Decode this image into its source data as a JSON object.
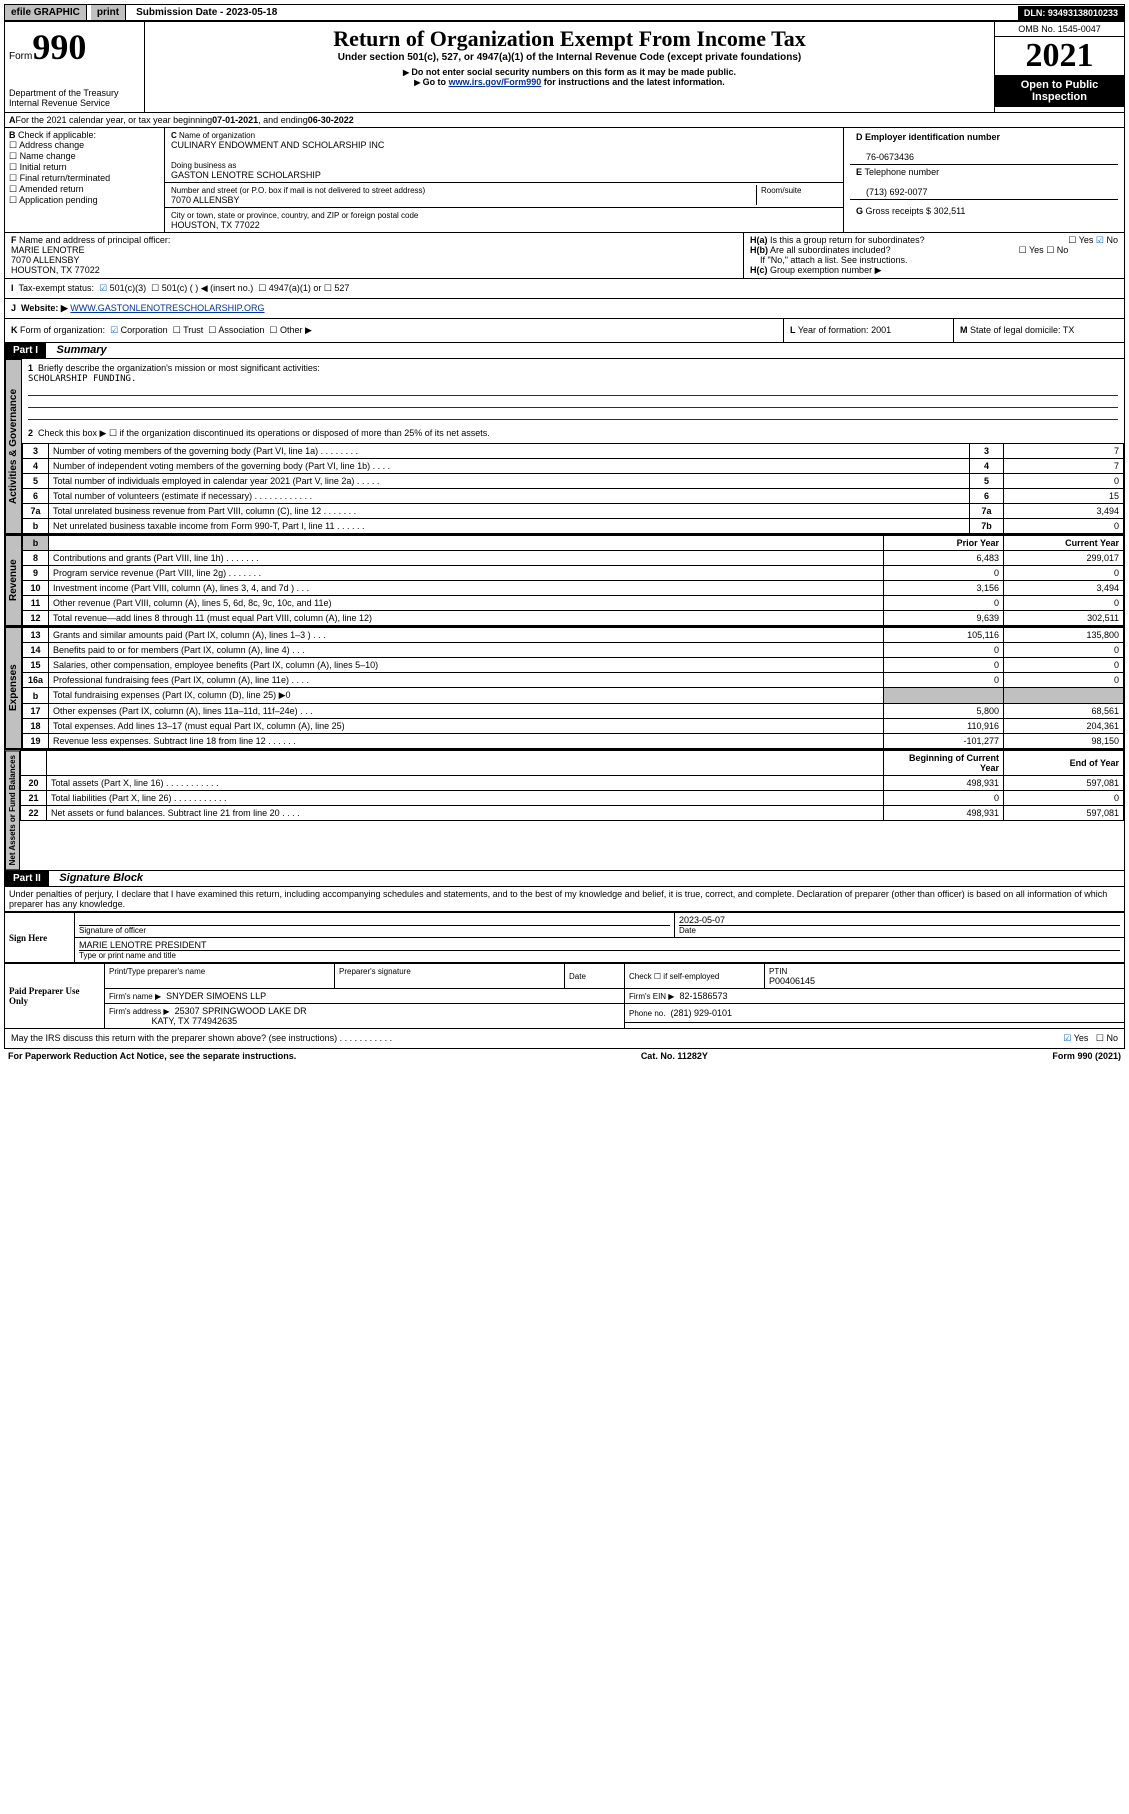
{
  "topbar": {
    "efile": "efile GRAPHIC",
    "print": "print",
    "subdate_label": "Submission Date - ",
    "subdate": "2023-05-18",
    "dln": "DLN: 93493138010233"
  },
  "header": {
    "form_label": "Form",
    "form_number": "990",
    "title": "Return of Organization Exempt From Income Tax",
    "subtitle": "Under section 501(c), 527, or 4947(a)(1) of the Internal Revenue Code (except private foundations)",
    "note1": "Do not enter social security numbers on this form as it may be made public.",
    "note2_pre": "Go to ",
    "note2_link": "www.irs.gov/Form990",
    "note2_post": " for instructions and the latest information.",
    "dept": "Department of the Treasury\nInternal Revenue Service",
    "omb": "OMB No. 1545-0047",
    "year": "2021",
    "open": "Open to Public Inspection"
  },
  "A": {
    "text_pre": "For the 2021 calendar year, or tax year beginning ",
    "beg": "07-01-2021",
    "mid": " , and ending ",
    "end": "06-30-2022"
  },
  "B": {
    "label": "Check if applicable:",
    "items": [
      "Address change",
      "Name change",
      "Initial return",
      "Final return/terminated",
      "Amended return",
      "Application pending"
    ]
  },
  "C": {
    "name_label": "Name of organization",
    "name": "CULINARY ENDOWMENT AND SCHOLARSHIP INC",
    "dba_label": "Doing business as",
    "dba": "GASTON LENOTRE SCHOLARSHIP",
    "street_label": "Number and street (or P.O. box if mail is not delivered to street address)",
    "street": "7070 ALLENSBY",
    "room_label": "Room/suite",
    "city_label": "City or town, state or province, country, and ZIP or foreign postal code",
    "city": "HOUSTON, TX  77022"
  },
  "D": {
    "label": "Employer identification number",
    "value": "76-0673436"
  },
  "E": {
    "label": "Telephone number",
    "value": "(713) 692-0077"
  },
  "G": {
    "label": "Gross receipts $",
    "value": "302,511"
  },
  "F": {
    "label": "Name and address of principal officer:",
    "name": "MARIE LENOTRE",
    "street": "7070 ALLENSBY",
    "city": "HOUSTON, TX  77022"
  },
  "H": {
    "a": "Is this a group return for subordinates?",
    "a_yes": "Yes",
    "a_no": "No",
    "b": "Are all subordinates included?",
    "b_note": "If \"No,\" attach a list. See instructions.",
    "c": "Group exemption number ▶"
  },
  "I": {
    "label": "Tax-exempt status:",
    "opt1": "501(c)(3)",
    "opt2": "501(c) (  ) ◀ (insert no.)",
    "opt3": "4947(a)(1) or",
    "opt4": "527"
  },
  "J": {
    "label": "Website: ▶",
    "value": "WWW.GASTONLENOTRESCHOLARSHIP.ORG"
  },
  "K": {
    "label": "Form of organization:",
    "opts": [
      "Corporation",
      "Trust",
      "Association",
      "Other ▶"
    ]
  },
  "L": {
    "label": "Year of formation:",
    "value": "2001"
  },
  "M": {
    "label": "State of legal domicile:",
    "value": "TX"
  },
  "part1": {
    "header": "Part I",
    "title": "Summary",
    "line1_label": "Briefly describe the organization's mission or most significant activities:",
    "line1_value": "SCHOLARSHIP FUNDING.",
    "line2": "Check this box ▶ ☐  if the organization discontinued its operations or disposed of more than 25% of its net assets.",
    "governance_label": "Activities & Governance",
    "rev_label": "Revenue",
    "exp_label": "Expenses",
    "net_label": "Net Assets or Fund Balances",
    "rows_gov": [
      {
        "n": "3",
        "t": "Number of voting members of the governing body (Part VI, line 1a)  .  .  .  .  .  .  .  .",
        "box": "3",
        "v": "7"
      },
      {
        "n": "4",
        "t": "Number of independent voting members of the governing body (Part VI, line 1b)  .  .  .  .",
        "box": "4",
        "v": "7"
      },
      {
        "n": "5",
        "t": "Total number of individuals employed in calendar year 2021 (Part V, line 2a)  .  .  .  .  .",
        "box": "5",
        "v": "0"
      },
      {
        "n": "6",
        "t": "Total number of volunteers (estimate if necessary)  .  .  .  .  .  .  .  .  .  .  .  .",
        "box": "6",
        "v": "15"
      },
      {
        "n": "7a",
        "t": "Total unrelated business revenue from Part VIII, column (C), line 12  .  .  .  .  .  .  .",
        "box": "7a",
        "v": "3,494"
      },
      {
        "n": "b",
        "t": "Net unrelated business taxable income from Form 990-T, Part I, line 11  .  .  .  .  .  .",
        "box": "7b",
        "v": "0"
      }
    ],
    "col_prior": "Prior Year",
    "col_current": "Current Year",
    "rows_rev": [
      {
        "n": "8",
        "t": "Contributions and grants (Part VIII, line 1h)  .  .  .  .  .  .  .",
        "p": "6,483",
        "c": "299,017"
      },
      {
        "n": "9",
        "t": "Program service revenue (Part VIII, line 2g)  .  .  .  .  .  .  .",
        "p": "0",
        "c": "0"
      },
      {
        "n": "10",
        "t": "Investment income (Part VIII, column (A), lines 3, 4, and 7d )  .  .  .",
        "p": "3,156",
        "c": "3,494"
      },
      {
        "n": "11",
        "t": "Other revenue (Part VIII, column (A), lines 5, 6d, 8c, 9c, 10c, and 11e)",
        "p": "0",
        "c": "0"
      },
      {
        "n": "12",
        "t": "Total revenue—add lines 8 through 11 (must equal Part VIII, column (A), line 12)",
        "p": "9,639",
        "c": "302,511"
      }
    ],
    "rows_exp": [
      {
        "n": "13",
        "t": "Grants and similar amounts paid (Part IX, column (A), lines 1–3 )  .  .  .",
        "p": "105,116",
        "c": "135,800"
      },
      {
        "n": "14",
        "t": "Benefits paid to or for members (Part IX, column (A), line 4)  .  .  .",
        "p": "0",
        "c": "0"
      },
      {
        "n": "15",
        "t": "Salaries, other compensation, employee benefits (Part IX, column (A), lines 5–10)",
        "p": "0",
        "c": "0"
      },
      {
        "n": "16a",
        "t": "Professional fundraising fees (Part IX, column (A), line 11e)  .  .  .  .",
        "p": "0",
        "c": "0"
      },
      {
        "n": "b",
        "t": "Total fundraising expenses (Part IX, column (D), line 25) ▶0",
        "p": "",
        "c": "",
        "shaded": true
      },
      {
        "n": "17",
        "t": "Other expenses (Part IX, column (A), lines 11a–11d, 11f–24e)  .  .  .",
        "p": "5,800",
        "c": "68,561"
      },
      {
        "n": "18",
        "t": "Total expenses. Add lines 13–17 (must equal Part IX, column (A), line 25)",
        "p": "110,916",
        "c": "204,361"
      },
      {
        "n": "19",
        "t": "Revenue less expenses. Subtract line 18 from line 12  .  .  .  .  .  .",
        "p": "-101,277",
        "c": "98,150"
      }
    ],
    "col_begin": "Beginning of Current Year",
    "col_end": "End of Year",
    "rows_net": [
      {
        "n": "20",
        "t": "Total assets (Part X, line 16)  .  .  .  .  .  .  .  .  .  .  .",
        "p": "498,931",
        "c": "597,081"
      },
      {
        "n": "21",
        "t": "Total liabilities (Part X, line 26)  .  .  .  .  .  .  .  .  .  .  .",
        "p": "0",
        "c": "0"
      },
      {
        "n": "22",
        "t": "Net assets or fund balances. Subtract line 21 from line 20  .  .  .  .",
        "p": "498,931",
        "c": "597,081"
      }
    ]
  },
  "part2": {
    "header": "Part II",
    "title": "Signature Block",
    "penalty": "Under penalties of perjury, I declare that I have examined this return, including accompanying schedules and statements, and to the best of my knowledge and belief, it is true, correct, and complete. Declaration of preparer (other than officer) is based on all information of which preparer has any knowledge.",
    "sign_here": "Sign Here",
    "sig_officer": "Signature of officer",
    "sig_date": "2023-05-07",
    "date_label": "Date",
    "officer_name": "MARIE LENOTRE PRESIDENT",
    "officer_name_label": "Type or print name and title",
    "paid": "Paid Preparer Use Only",
    "prep_name_label": "Print/Type preparer's name",
    "prep_sig_label": "Preparer's signature",
    "check_self": "Check ☐ if self-employed",
    "ptin_label": "PTIN",
    "ptin": "P00406145",
    "firm_name_label": "Firm's name    ▶",
    "firm_name": "SNYDER SIMOENS LLP",
    "firm_ein_label": "Firm's EIN ▶",
    "firm_ein": "82-1586573",
    "firm_addr_label": "Firm's address ▶",
    "firm_addr1": "25307 SPRINGWOOD LAKE DR",
    "firm_addr2": "KATY, TX  774942635",
    "phone_label": "Phone no.",
    "phone": "(281) 929-0101",
    "may_discuss": "May the IRS discuss this return with the preparer shown above? (see instructions)  .  .  .  .  .  .  .  .  .  .  .",
    "yes": "Yes",
    "no": "No"
  },
  "footer": {
    "left": "For Paperwork Reduction Act Notice, see the separate instructions.",
    "mid": "Cat. No. 11282Y",
    "right": "Form 990 (2021)"
  }
}
